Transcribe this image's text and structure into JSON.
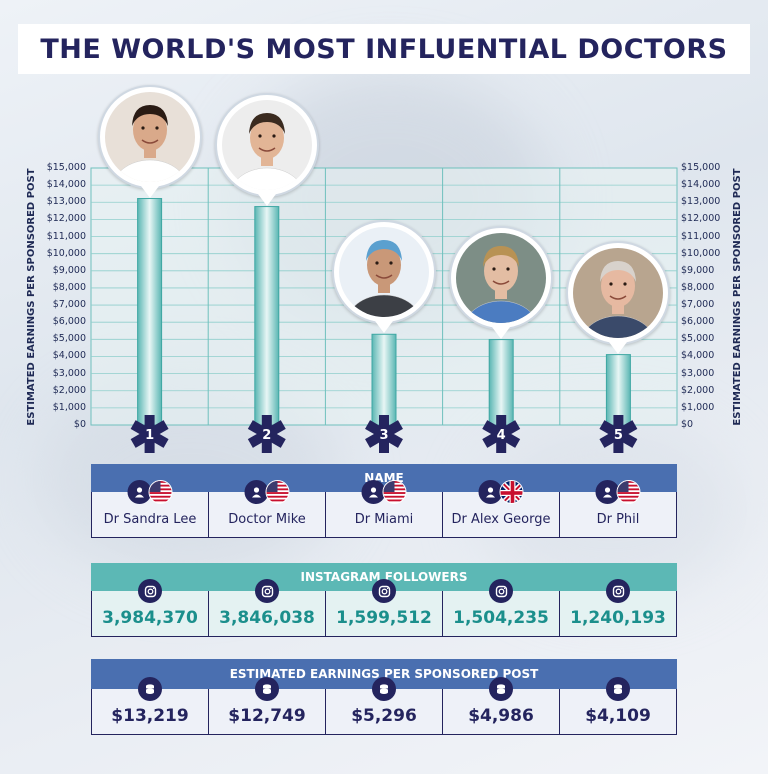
{
  "title": "THE WORLD'S MOST INFLUENTIAL DOCTORS",
  "colors": {
    "navy": "#24245e",
    "teal": "#5fbcb9",
    "teal_dark": "#1b8f8c",
    "blue_header": "#4a6fb0",
    "teal_header": "#5cb8b5"
  },
  "chart_data": {
    "type": "bar",
    "ylabel": "ESTIMATED EARNINGS PER SPONSORED POST",
    "ylim": [
      0,
      15000
    ],
    "y_ticks": [
      "$0",
      "$1,000",
      "$2,000",
      "$3,000",
      "$4,000",
      "$5,000",
      "$6,000",
      "$7,000",
      "$8,000",
      "$9,000",
      "$10,000",
      "$11,000",
      "$12,000",
      "$13,000",
      "$14,000",
      "$15,000"
    ],
    "categories": [
      "1",
      "2",
      "3",
      "4",
      "5"
    ],
    "values": [
      13219,
      12749,
      5296,
      4986,
      4109
    ],
    "grid": true
  },
  "table": {
    "name_header": "NAME",
    "followers_header": "INSTAGRAM FOLLOWERS",
    "earnings_header": "ESTIMATED EARNINGS PER SPONSORED POST",
    "rows": [
      {
        "rank": "1",
        "name": "Dr Sandra Lee",
        "flag": "us-flag-icon",
        "followers": "3,984,370",
        "earnings": "$13,219"
      },
      {
        "rank": "2",
        "name": "Doctor Mike",
        "flag": "us-flag-icon",
        "followers": "3,846,038",
        "earnings": "$12,749"
      },
      {
        "rank": "3",
        "name": "Dr Miami",
        "flag": "us-flag-icon",
        "followers": "1,599,512",
        "earnings": "$5,296"
      },
      {
        "rank": "4",
        "name": "Dr Alex George",
        "flag": "uk-flag-icon",
        "followers": "1,504,235",
        "earnings": "$4,986"
      },
      {
        "rank": "5",
        "name": "Dr Phil",
        "flag": "us-flag-icon",
        "followers": "1,240,193",
        "earnings": "$4,109"
      }
    ]
  },
  "icons": {
    "person": "user-icon",
    "instagram": "instagram-icon",
    "money": "coins-icon",
    "rank_marker": "star-of-life-icon"
  }
}
